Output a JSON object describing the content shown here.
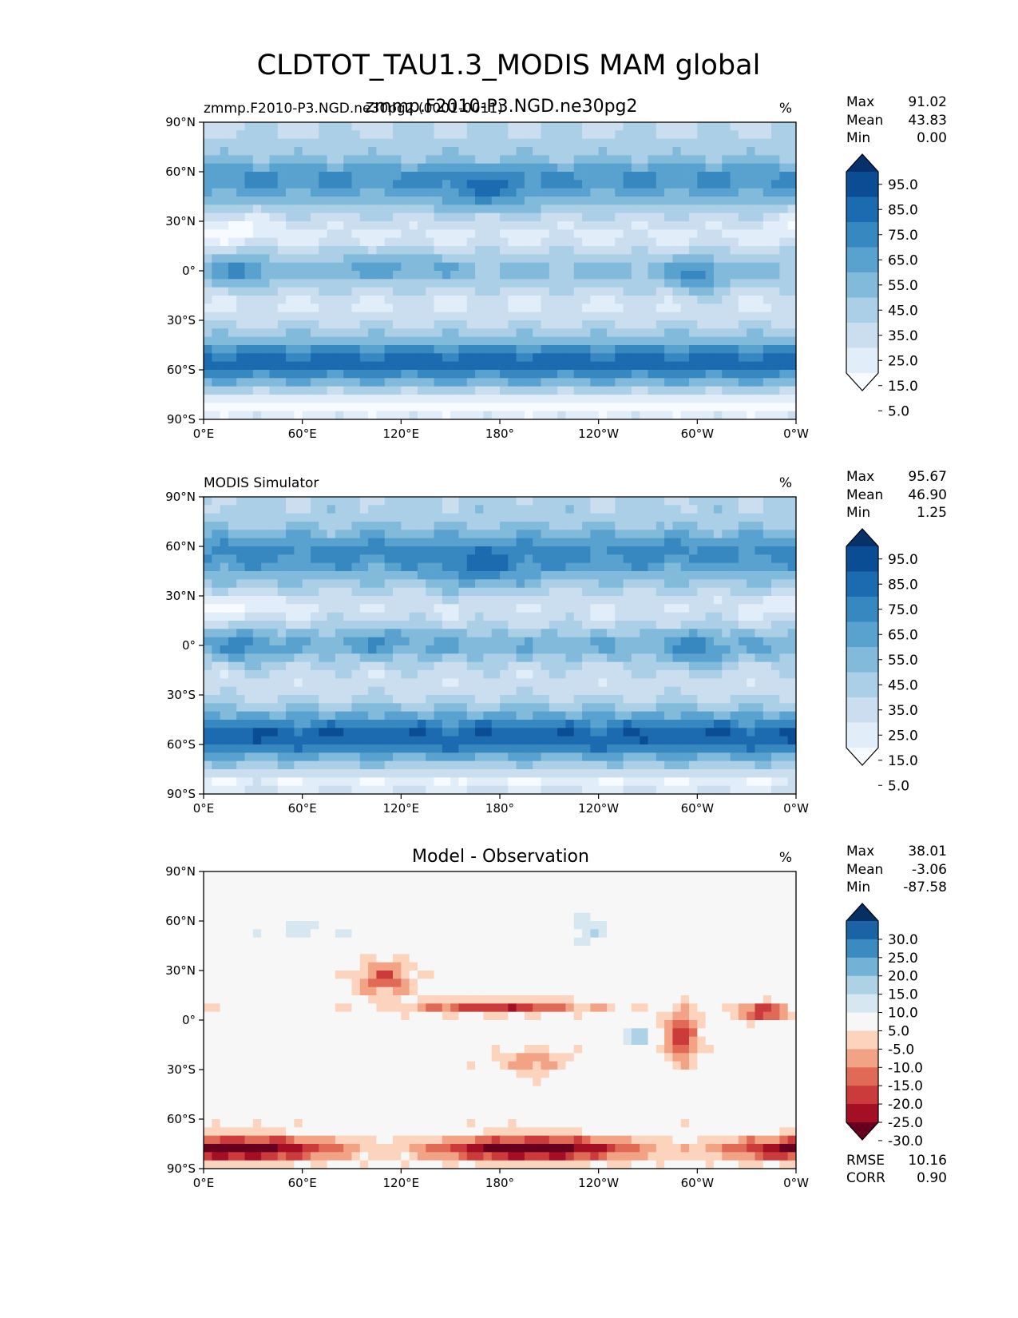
{
  "figure": {
    "title": "CLDTOT_TAU1.3_MODIS MAM global"
  },
  "colormaps": {
    "blues": [
      "#f7fbff",
      "#e1edf8",
      "#cadef0",
      "#abcfe6",
      "#82badb",
      "#59a1cf",
      "#3787c0",
      "#1c6aaf",
      "#0b4d94",
      "#08306b"
    ],
    "diff": [
      "#67001f",
      "#a50f24",
      "#cb3b3b",
      "#e16a56",
      "#f3a385",
      "#fcd3bd",
      "#f7f7f7",
      "#d6e7f1",
      "#add2e5",
      "#73b2d5",
      "#3c8bc0",
      "#1b63a5",
      "#053061"
    ]
  },
  "chart_data": [
    {
      "type": "heatmap",
      "title": "zmmp.F2010-P3.NGD.ne30pg2",
      "subtitle_left": "zmmp.F2010-P3.NGD.ne30pg2 (0001-0011)",
      "units": "%",
      "xlim": [
        0,
        360
      ],
      "ylim": [
        -90,
        90
      ],
      "xticks": [
        "0°E",
        "60°E",
        "120°E",
        "180°",
        "120°W",
        "60°W",
        "0°W"
      ],
      "yticks": [
        "90°N",
        "60°N",
        "30°N",
        "0°",
        "30°S",
        "60°S",
        "90°S"
      ],
      "stats": {
        "max_label": "Max",
        "max": "91.02",
        "mean_label": "Mean",
        "mean": "43.83",
        "min_label": "Min",
        "min": "0.00"
      },
      "colorbar": {
        "levels": [
          "95.0",
          "85.0",
          "75.0",
          "65.0",
          "55.0",
          "45.0",
          "35.0",
          "25.0",
          "15.0",
          "5.0"
        ],
        "extend": "both"
      },
      "field": "model"
    },
    {
      "type": "heatmap",
      "title": "",
      "subtitle_left": "MODIS Simulator",
      "units": "%",
      "xlim": [
        0,
        360
      ],
      "ylim": [
        -90,
        90
      ],
      "xticks": [
        "0°E",
        "60°E",
        "120°E",
        "180°",
        "120°W",
        "60°W",
        "0°W"
      ],
      "yticks": [
        "90°N",
        "60°N",
        "30°N",
        "0°",
        "30°S",
        "60°S",
        "90°S"
      ],
      "stats": {
        "max_label": "Max",
        "max": "95.67",
        "mean_label": "Mean",
        "mean": "46.90",
        "min_label": "Min",
        "min": "1.25"
      },
      "colorbar": {
        "levels": [
          "95.0",
          "85.0",
          "75.0",
          "65.0",
          "55.0",
          "45.0",
          "35.0",
          "25.0",
          "15.0",
          "5.0"
        ],
        "extend": "both"
      },
      "field": "obs"
    },
    {
      "type": "heatmap",
      "title": "Model - Observation",
      "subtitle_left": "",
      "units": "%",
      "xlim": [
        0,
        360
      ],
      "ylim": [
        -90,
        90
      ],
      "xticks": [
        "0°E",
        "60°E",
        "120°E",
        "180°",
        "120°W",
        "60°W",
        "0°W"
      ],
      "yticks": [
        "90°N",
        "60°N",
        "30°N",
        "0°",
        "30°S",
        "60°S",
        "90°S"
      ],
      "stats": {
        "max_label": "Max",
        "max": "38.01",
        "mean_label": "Mean",
        "mean": "-3.06",
        "min_label": "Min",
        "min": "-87.58"
      },
      "colorbar": {
        "levels": [
          "30.0",
          "25.0",
          "20.0",
          "15.0",
          "10.0",
          "5.0",
          "-5.0",
          "-10.0",
          "-15.0",
          "-20.0",
          "-25.0",
          "-30.0"
        ],
        "extend": "both"
      },
      "metrics": {
        "rmse_label": "RMSE",
        "rmse": "10.16",
        "corr_label": "CORR",
        "corr": "0.90"
      },
      "field": "diff"
    }
  ]
}
